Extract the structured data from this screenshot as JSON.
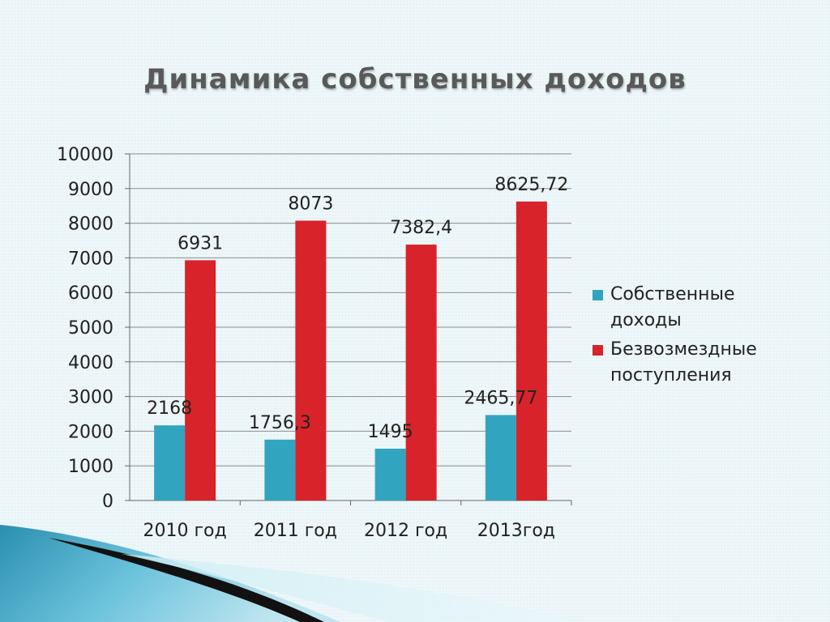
{
  "slide": {
    "title": "Динамика собственных доходов"
  },
  "colors": {
    "own_income": "#31a5c0",
    "gratuitous": "#d8232a",
    "background": "#e8f4f7",
    "grid": "#8c8c8c"
  },
  "chart_data": {
    "type": "bar",
    "title": "Динамика собственных доходов",
    "categories": [
      "2010 год",
      "2011 год",
      "2012 год",
      "2013год"
    ],
    "series": [
      {
        "name": "Собственные доходы",
        "legend_lines": [
          "Собственные",
          "доходы"
        ],
        "values": [
          2168,
          1756.3,
          1495,
          2465.77
        ],
        "labels": [
          "2168",
          "1756,3",
          "1495",
          "2465,77"
        ]
      },
      {
        "name": "Безвозмездные поступления",
        "legend_lines": [
          "Безвозмездные",
          "поступления"
        ],
        "values": [
          6931,
          8073,
          7382.4,
          8625.72
        ],
        "labels": [
          "6931",
          "8073",
          "7382,4",
          "8625,72"
        ]
      }
    ],
    "yticks": [
      "0",
      "1000",
      "2000",
      "3000",
      "4000",
      "5000",
      "6000",
      "7000",
      "8000",
      "9000",
      "10000"
    ],
    "ylim": [
      0,
      10000
    ],
    "grid": true,
    "legend_position": "right",
    "xlabel": "",
    "ylabel": ""
  }
}
